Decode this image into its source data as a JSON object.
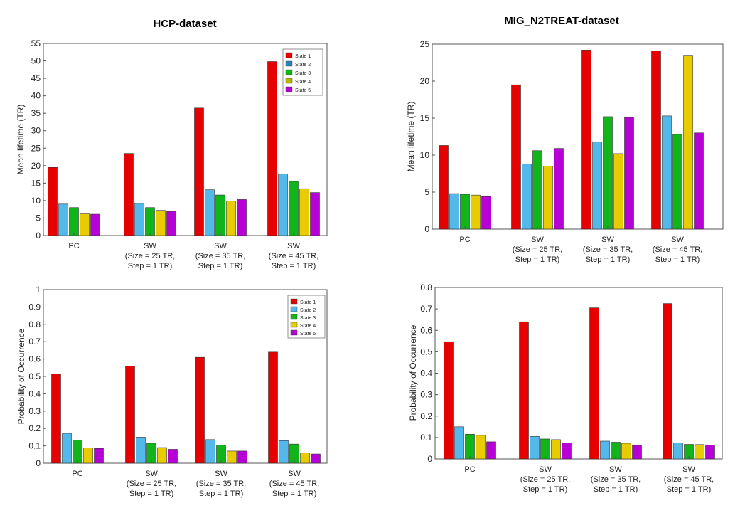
{
  "headers": {
    "left_title": "HCP-dataset",
    "right_title": "MIG_N2TREAT-dataset"
  },
  "colors": {
    "State 1": "#e60000",
    "State 2": "#53b8ea",
    "State 3": "#12b519",
    "State 4": "#e8cc00",
    "State 5": "#b700d6"
  },
  "legend_colors_hcp": [
    "#e60000",
    "#2f83b4",
    "#12b519",
    "#b6b400",
    "#b700d6"
  ],
  "chart_data": [
    {
      "type": "bar",
      "title": "HCP-dataset",
      "xlabel": "",
      "ylabel": "Mean lifetime (TR)",
      "ylim": [
        0,
        55
      ],
      "yticks": [
        0,
        5,
        10,
        15,
        20,
        25,
        30,
        35,
        40,
        45,
        50,
        55
      ],
      "ytick_labels": [
        "0",
        "5",
        "10",
        "15",
        "20",
        "25",
        "30",
        "35",
        "40",
        "45",
        "50",
        "55"
      ],
      "categories": [
        [
          "PC"
        ],
        [
          "SW",
          "(Size = 25 TR,",
          "Step = 1 TR)"
        ],
        [
          "SW",
          "(Size = 35 TR,",
          "Step = 1 TR)"
        ],
        [
          "SW",
          "(Size = 45 TR,",
          "Step = 1 TR)"
        ]
      ],
      "series": [
        {
          "name": "State 1",
          "values": [
            19.5,
            23.5,
            36.5,
            49.8
          ]
        },
        {
          "name": "State 2",
          "values": [
            9.0,
            9.2,
            13.1,
            17.6
          ]
        },
        {
          "name": "State 3",
          "values": [
            8.0,
            8.0,
            11.6,
            15.5
          ]
        },
        {
          "name": "State 4",
          "values": [
            6.2,
            7.2,
            9.9,
            13.4
          ]
        },
        {
          "name": "State 5",
          "values": [
            6.1,
            6.9,
            10.3,
            12.3
          ]
        }
      ],
      "legend": "top-right"
    },
    {
      "type": "bar",
      "title": "MIG_N2TREAT-dataset",
      "xlabel": "",
      "ylabel": "Mean lifetime (TR)",
      "ylim": [
        0,
        25
      ],
      "yticks": [
        0,
        5,
        10,
        15,
        20,
        25
      ],
      "ytick_labels": [
        "0",
        "5",
        "10",
        "15",
        "20",
        "25"
      ],
      "categories": [
        [
          "PC"
        ],
        [
          "SW",
          "(Size = 25 TR,",
          "Step = 1 TR)"
        ],
        [
          "SW",
          "(Size = 35 TR,",
          "Step = 1 TR)"
        ],
        [
          "SW",
          "(Size = 45 TR,",
          "Step = 1 TR)"
        ]
      ],
      "series": [
        {
          "name": "State 1",
          "values": [
            11.3,
            19.5,
            24.2,
            24.1
          ]
        },
        {
          "name": "State 2",
          "values": [
            4.8,
            8.8,
            11.8,
            15.3
          ]
        },
        {
          "name": "State 3",
          "values": [
            4.7,
            10.6,
            15.2,
            12.8
          ]
        },
        {
          "name": "State 4",
          "values": [
            4.6,
            8.5,
            10.2,
            23.4
          ]
        },
        {
          "name": "State 5",
          "values": [
            4.4,
            10.9,
            15.1,
            13.0
          ]
        }
      ],
      "legend": "none"
    },
    {
      "type": "bar",
      "title": "",
      "xlabel": "",
      "ylabel": "Probability of Occurrence",
      "ylim": [
        0,
        1
      ],
      "yticks": [
        0,
        0.1,
        0.2,
        0.3,
        0.4,
        0.5,
        0.6,
        0.7,
        0.8,
        0.9,
        1
      ],
      "ytick_labels": [
        "0",
        "0.1",
        "0.2",
        "0.3",
        "0.4",
        "0.5",
        "0.6",
        "0.7",
        "0.8",
        "0.9",
        "1"
      ],
      "categories": [
        [
          "PC"
        ],
        [
          "SW",
          "(Size = 25 TR,",
          "Step = 1 TR)"
        ],
        [
          "SW",
          "(Size = 35 TR,",
          "Step = 1 TR)"
        ],
        [
          "SW",
          "(Size = 45 TR,",
          "Step = 1 TR)"
        ]
      ],
      "series": [
        {
          "name": "State 1",
          "values": [
            0.513,
            0.56,
            0.61,
            0.64
          ]
        },
        {
          "name": "State 2",
          "values": [
            0.172,
            0.15,
            0.136,
            0.13
          ]
        },
        {
          "name": "State 3",
          "values": [
            0.133,
            0.115,
            0.105,
            0.11
          ]
        },
        {
          "name": "State 4",
          "values": [
            0.088,
            0.09,
            0.07,
            0.06
          ]
        },
        {
          "name": "State 5",
          "values": [
            0.085,
            0.08,
            0.07,
            0.053
          ]
        }
      ],
      "legend": "top-right"
    },
    {
      "type": "bar",
      "title": "",
      "xlabel": "",
      "ylabel": "Probability of Occurrence",
      "ylim": [
        0,
        0.8
      ],
      "yticks": [
        0,
        0.1,
        0.2,
        0.3,
        0.4,
        0.5,
        0.6,
        0.7,
        0.8
      ],
      "ytick_labels": [
        "0",
        "0.1",
        "0.2",
        "0.3",
        "0.4",
        "0.5",
        "0.6",
        "0.7",
        "0.8"
      ],
      "categories": [
        [
          "PC"
        ],
        [
          "SW",
          "(Size = 25 TR,",
          "Step = 1 TR)"
        ],
        [
          "SW",
          "(Size = 35 TR,",
          "Step = 1 TR)"
        ],
        [
          "SW",
          "(Size = 45 TR,",
          "Step = 1 TR)"
        ]
      ],
      "series": [
        {
          "name": "State 1",
          "values": [
            0.547,
            0.64,
            0.705,
            0.725
          ]
        },
        {
          "name": "State 2",
          "values": [
            0.15,
            0.105,
            0.083,
            0.075
          ]
        },
        {
          "name": "State 3",
          "values": [
            0.115,
            0.093,
            0.078,
            0.068
          ]
        },
        {
          "name": "State 4",
          "values": [
            0.11,
            0.09,
            0.073,
            0.067
          ]
        },
        {
          "name": "State 5",
          "values": [
            0.08,
            0.075,
            0.063,
            0.065
          ]
        }
      ],
      "legend": "none"
    }
  ]
}
